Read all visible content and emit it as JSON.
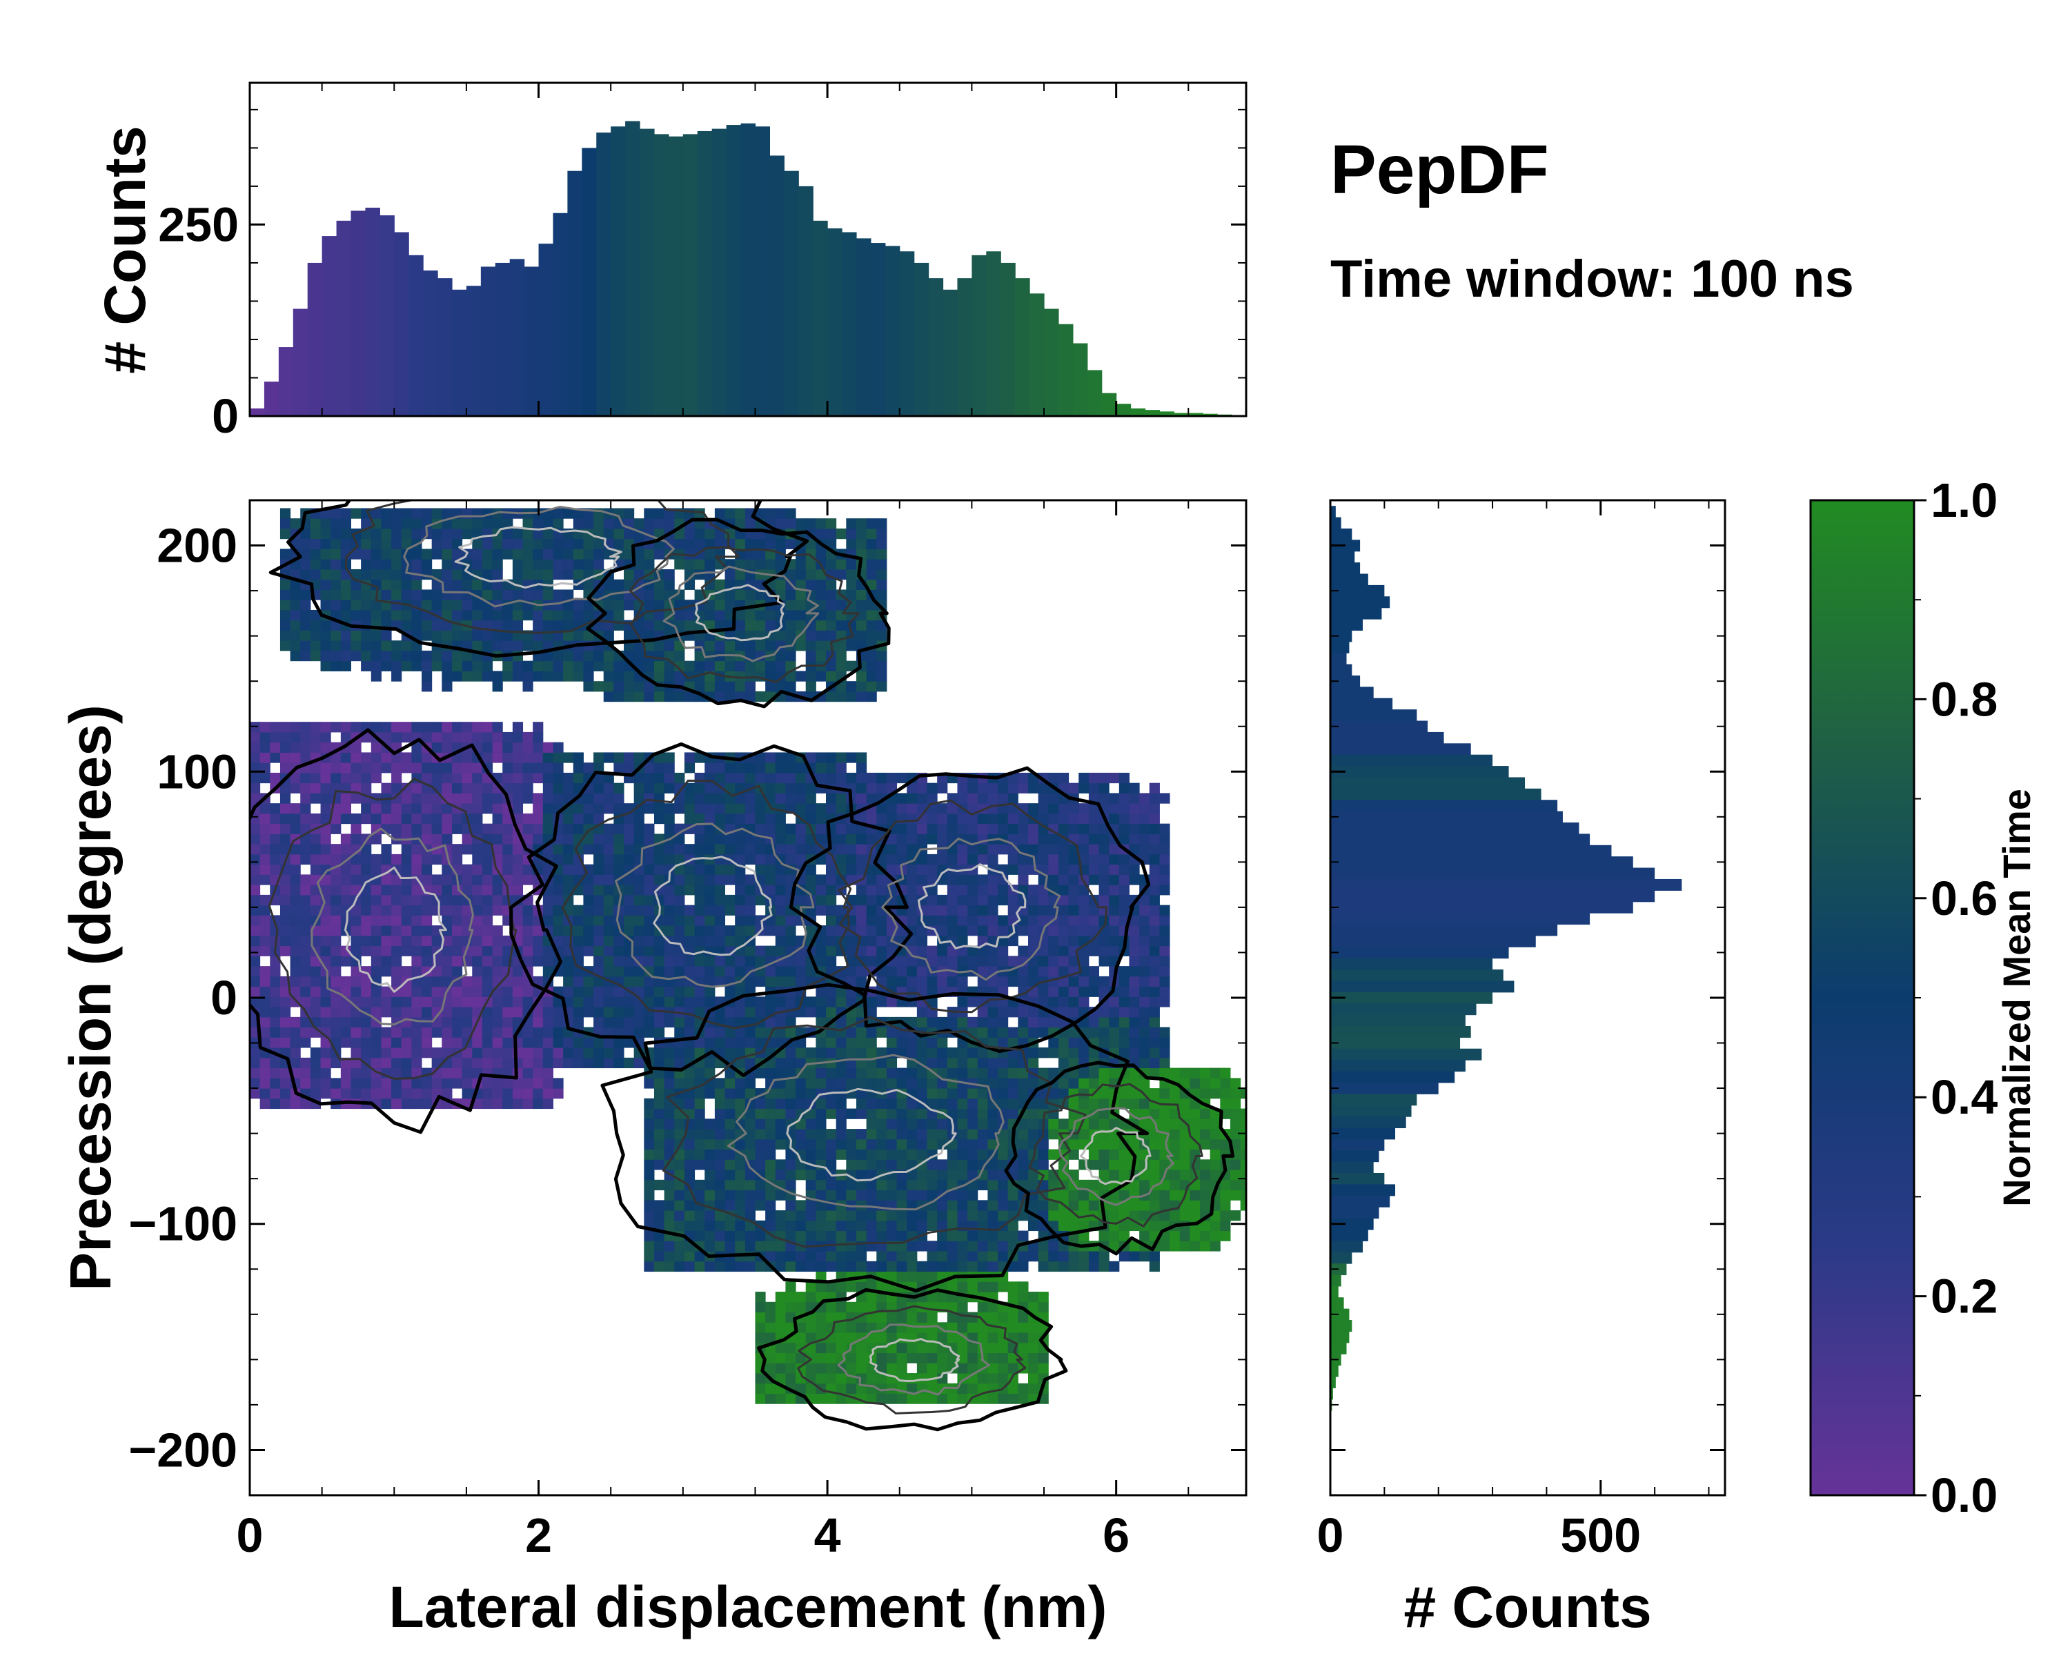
{
  "figure": {
    "title": "PepDF",
    "subtitle": "Time window: 100 ns"
  },
  "colors": {
    "purple": "#663399",
    "navy": "#1e3a78",
    "teal": "#1f5c5c",
    "green": "#228b22",
    "frame": "#000000"
  },
  "chart_data": [
    {
      "id": "top_histogram",
      "type": "bar",
      "xlabel": "",
      "ylabel": "# Counts",
      "xlim": [
        0,
        6.9
      ],
      "ylim": [
        0,
        435
      ],
      "yticks": [
        0,
        250
      ],
      "ytick_labels": [
        "0",
        "250"
      ],
      "bin_width": 0.1,
      "x": [
        0.05,
        0.15,
        0.25,
        0.35,
        0.45,
        0.55,
        0.65,
        0.75,
        0.85,
        0.95,
        1.05,
        1.15,
        1.25,
        1.35,
        1.45,
        1.55,
        1.65,
        1.75,
        1.85,
        1.95,
        2.05,
        2.15,
        2.25,
        2.35,
        2.45,
        2.55,
        2.65,
        2.75,
        2.85,
        2.95,
        3.05,
        3.15,
        3.25,
        3.35,
        3.45,
        3.55,
        3.65,
        3.75,
        3.85,
        3.95,
        4.05,
        4.15,
        4.25,
        4.35,
        4.45,
        4.55,
        4.65,
        4.75,
        4.85,
        4.95,
        5.05,
        5.15,
        5.25,
        5.35,
        5.45,
        5.55,
        5.65,
        5.75,
        5.85,
        5.95,
        6.05,
        6.15,
        6.25,
        6.35,
        6.45,
        6.55,
        6.65,
        6.75
      ],
      "values": [
        10,
        45,
        90,
        140,
        200,
        235,
        255,
        268,
        272,
        262,
        240,
        210,
        190,
        180,
        165,
        170,
        195,
        200,
        205,
        195,
        225,
        265,
        320,
        350,
        370,
        378,
        385,
        375,
        368,
        365,
        368,
        372,
        375,
        380,
        382,
        378,
        340,
        320,
        300,
        255,
        245,
        240,
        232,
        226,
        222,
        215,
        200,
        180,
        165,
        180,
        210,
        215,
        200,
        180,
        160,
        140,
        120,
        95,
        60,
        30,
        16,
        10,
        8,
        6,
        4,
        4,
        3,
        2
      ],
      "colors_by_norm_time": [
        0.02,
        0.05,
        0.08,
        0.1,
        0.12,
        0.14,
        0.15,
        0.16,
        0.18,
        0.2,
        0.22,
        0.25,
        0.28,
        0.3,
        0.32,
        0.34,
        0.35,
        0.36,
        0.38,
        0.4,
        0.42,
        0.44,
        0.46,
        0.5,
        0.55,
        0.58,
        0.6,
        0.62,
        0.64,
        0.65,
        0.66,
        0.62,
        0.6,
        0.58,
        0.56,
        0.55,
        0.56,
        0.58,
        0.6,
        0.62,
        0.6,
        0.58,
        0.56,
        0.55,
        0.58,
        0.6,
        0.62,
        0.64,
        0.66,
        0.68,
        0.7,
        0.72,
        0.74,
        0.78,
        0.8,
        0.82,
        0.84,
        0.86,
        0.88,
        0.9,
        0.92,
        0.94,
        0.95,
        0.96,
        0.97,
        0.98,
        0.99,
        1.0
      ]
    },
    {
      "id": "main_density",
      "type": "heatmap",
      "xlabel": "Lateral displacement (nm)",
      "ylabel": "Precession (degrees)",
      "xlim": [
        0,
        6.9
      ],
      "ylim": [
        -220,
        220
      ],
      "xticks": [
        0,
        2,
        4,
        6
      ],
      "xtick_labels": [
        "0",
        "2",
        "4",
        "6"
      ],
      "yticks": [
        200,
        100,
        0,
        -100,
        -200
      ],
      "ytick_labels": [
        "200",
        "100",
        "0",
        "−100",
        "−200"
      ],
      "clusters": [
        {
          "name": "upper-left lobe",
          "center": [
            2.0,
            195
          ],
          "extent": [
            0.2,
            3.8,
            130,
            215
          ],
          "norm_time": 0.5
        },
        {
          "name": "upper-right lobe",
          "center": [
            3.4,
            170
          ],
          "extent": [
            2.4,
            4.4,
            130,
            210
          ],
          "norm_time": 0.55
        },
        {
          "name": "left core",
          "center": [
            1.0,
            30
          ],
          "extent": [
            0.0,
            2.2,
            -50,
            120
          ],
          "norm_time": 0.15
        },
        {
          "name": "central core",
          "center": [
            3.2,
            40
          ],
          "extent": [
            1.7,
            4.3,
            -30,
            110
          ],
          "norm_time": 0.45
        },
        {
          "name": "right shelf",
          "center": [
            5.0,
            40
          ],
          "extent": [
            4.1,
            6.4,
            -20,
            100
          ],
          "norm_time": 0.35
        },
        {
          "name": "lower band",
          "center": [
            4.3,
            -60
          ],
          "extent": [
            2.7,
            6.4,
            -120,
            10
          ],
          "norm_time": 0.55
        },
        {
          "name": "green right tail",
          "center": [
            6.0,
            -70
          ],
          "extent": [
            5.4,
            6.9,
            -110,
            -30
          ],
          "norm_time": 0.95
        },
        {
          "name": "green bottom tail",
          "center": [
            4.6,
            -160
          ],
          "extent": [
            3.5,
            5.5,
            -180,
            -120
          ],
          "norm_time": 0.95
        }
      ]
    },
    {
      "id": "right_histogram",
      "type": "bar",
      "orientation": "horizontal",
      "xlabel": "# Counts",
      "ylabel": "",
      "xlim": [
        0,
        730
      ],
      "ylim": [
        -220,
        220
      ],
      "xticks": [
        0,
        500
      ],
      "xtick_labels": [
        "0",
        "500"
      ],
      "bin_width": 5,
      "y": [
        215,
        210,
        205,
        200,
        195,
        190,
        185,
        180,
        175,
        170,
        165,
        160,
        155,
        150,
        145,
        140,
        135,
        130,
        125,
        120,
        115,
        110,
        105,
        100,
        95,
        90,
        85,
        80,
        75,
        70,
        65,
        60,
        55,
        50,
        45,
        40,
        35,
        30,
        25,
        20,
        15,
        10,
        5,
        0,
        -5,
        -10,
        -15,
        -20,
        -25,
        -30,
        -35,
        -40,
        -45,
        -50,
        -55,
        -60,
        -65,
        -70,
        -75,
        -80,
        -85,
        -90,
        -95,
        -100,
        -105,
        -110,
        -115,
        -120,
        -125,
        -130,
        -135,
        -140,
        -145,
        -150,
        -155,
        -160,
        -165,
        -170,
        -175,
        -180
      ],
      "values": [
        10,
        20,
        40,
        55,
        45,
        55,
        70,
        100,
        110,
        95,
        60,
        40,
        35,
        30,
        40,
        55,
        80,
        115,
        160,
        180,
        210,
        260,
        300,
        330,
        360,
        390,
        420,
        430,
        460,
        480,
        520,
        560,
        600,
        650,
        600,
        560,
        480,
        420,
        380,
        330,
        300,
        320,
        340,
        300,
        270,
        250,
        260,
        240,
        280,
        250,
        230,
        200,
        160,
        150,
        140,
        120,
        100,
        90,
        80,
        100,
        120,
        110,
        90,
        80,
        70,
        60,
        40,
        30,
        20,
        15,
        25,
        35,
        40,
        35,
        30,
        20,
        15,
        10,
        5,
        3
      ],
      "colors_by_norm_time": [
        0.5,
        0.5,
        0.5,
        0.5,
        0.5,
        0.5,
        0.5,
        0.5,
        0.5,
        0.5,
        0.5,
        0.5,
        0.5,
        0.45,
        0.45,
        0.45,
        0.45,
        0.45,
        0.45,
        0.4,
        0.4,
        0.4,
        0.55,
        0.58,
        0.6,
        0.6,
        0.45,
        0.42,
        0.42,
        0.42,
        0.42,
        0.42,
        0.4,
        0.38,
        0.36,
        0.36,
        0.38,
        0.4,
        0.4,
        0.45,
        0.55,
        0.6,
        0.55,
        0.65,
        0.6,
        0.62,
        0.65,
        0.66,
        0.6,
        0.55,
        0.5,
        0.45,
        0.62,
        0.6,
        0.55,
        0.5,
        0.45,
        0.5,
        0.55,
        0.6,
        0.5,
        0.45,
        0.45,
        0.5,
        0.5,
        0.55,
        0.6,
        0.8,
        0.9,
        0.95,
        0.95,
        0.95,
        0.95,
        0.95,
        0.95,
        0.95,
        0.95,
        0.95,
        0.95,
        0.95
      ]
    },
    {
      "id": "colorbar",
      "type": "colorbar",
      "label": "Normalized Mean Time",
      "range": [
        0.0,
        1.0
      ],
      "ticks": [
        0.0,
        0.2,
        0.4,
        0.6,
        0.8,
        1.0
      ],
      "tick_labels": [
        "0.0",
        "0.2",
        "0.4",
        "0.6",
        "0.8",
        "1.0"
      ],
      "stops": [
        {
          "value": 0.0,
          "color": "#663399"
        },
        {
          "value": 0.25,
          "color": "#2b3a87"
        },
        {
          "value": 0.5,
          "color": "#0c3c6e"
        },
        {
          "value": 0.75,
          "color": "#1f5f45"
        },
        {
          "value": 1.0,
          "color": "#228b22"
        }
      ]
    }
  ]
}
